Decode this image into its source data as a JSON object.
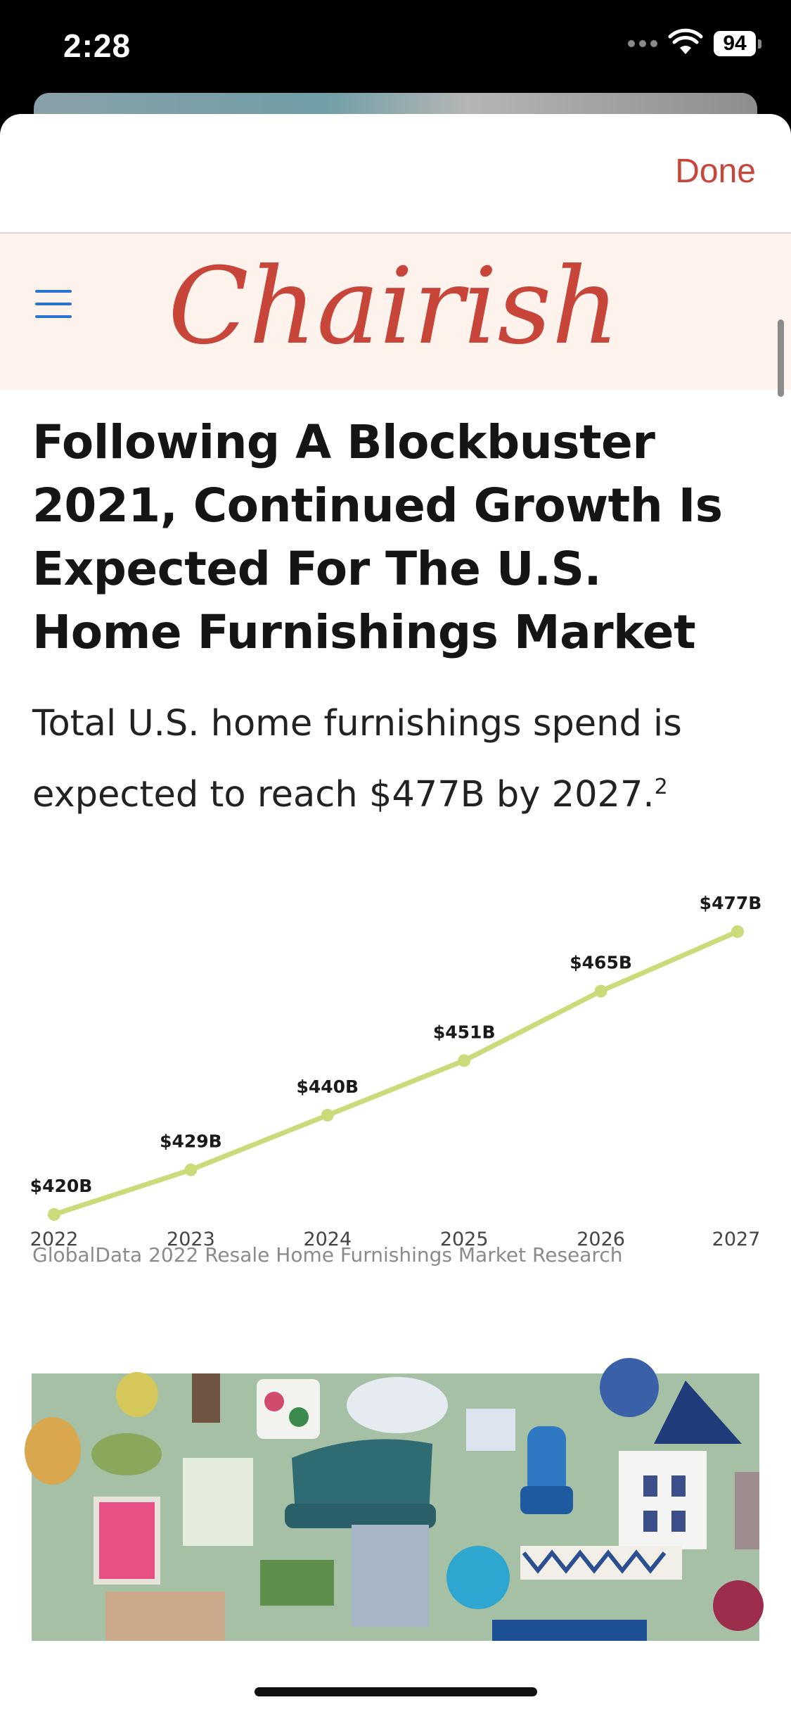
{
  "status": {
    "time": "2:28",
    "battery": "94"
  },
  "sheet": {
    "done_label": "Done"
  },
  "header": {
    "logo_text": "Chairish"
  },
  "article": {
    "headline": "Following A Blockbuster 2021, Continued Growth Is Expected For The U.S. Home Furnishings Market",
    "subhead": "Total U.S. home furnishings spend is expected to reach $477B by 2027.",
    "subhead_footnote": "2",
    "source": "GlobalData 2022 Resale Home Furnishings Market Research"
  },
  "chart_data": {
    "type": "line",
    "categories": [
      "2022",
      "2023",
      "2024",
      "2025",
      "2026",
      "2027"
    ],
    "values": [
      420,
      429,
      440,
      451,
      465,
      477
    ],
    "data_labels": [
      "$420B",
      "$429B",
      "$440B",
      "$451B",
      "$465B",
      "$477B"
    ],
    "ylim": [
      420,
      477
    ],
    "grid": false,
    "line_color": "#ccdb7a"
  },
  "colors": {
    "accent": "#c8453a",
    "header_bg": "#fdf3ec",
    "menu_blue": "#2a73d0"
  }
}
